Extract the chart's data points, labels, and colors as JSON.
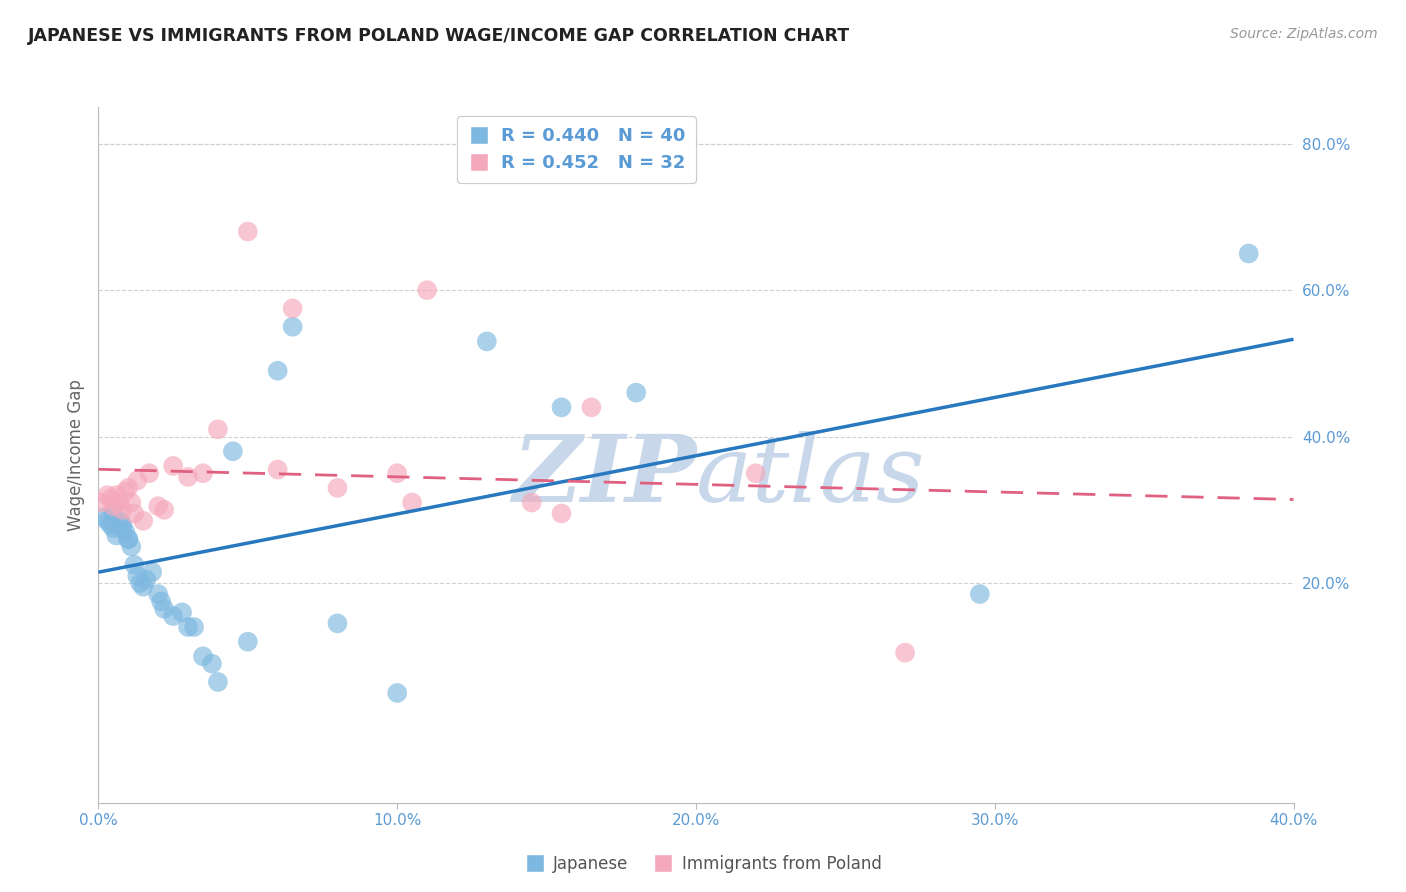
{
  "title": "JAPANESE VS IMMIGRANTS FROM POLAND WAGE/INCOME GAP CORRELATION CHART",
  "source": "Source: ZipAtlas.com",
  "ylabel": "Wage/Income Gap",
  "xlim": [
    0.0,
    0.4
  ],
  "ylim": [
    -0.1,
    0.85
  ],
  "yticks_right": [
    0.2,
    0.4,
    0.6,
    0.8
  ],
  "xticks": [
    0.0,
    0.1,
    0.2,
    0.3,
    0.4
  ],
  "blue_R": 0.44,
  "blue_N": 40,
  "pink_R": 0.452,
  "pink_N": 32,
  "blue_label": "Japanese",
  "pink_label": "Immigrants from Poland",
  "blue_color": "#7db8e0",
  "pink_color": "#f4a8bb",
  "blue_line_color": "#2878c0",
  "pink_line_color": "#e06080",
  "watermark_color": "#c8d8ea",
  "blue_x": [
    0.002,
    0.003,
    0.004,
    0.005,
    0.005,
    0.006,
    0.007,
    0.008,
    0.008,
    0.009,
    0.01,
    0.01,
    0.011,
    0.012,
    0.013,
    0.014,
    0.015,
    0.016,
    0.018,
    0.02,
    0.021,
    0.022,
    0.025,
    0.028,
    0.03,
    0.032,
    0.035,
    0.038,
    0.04,
    0.045,
    0.05,
    0.06,
    0.065,
    0.08,
    0.1,
    0.13,
    0.155,
    0.18,
    0.295,
    0.385
  ],
  "blue_y": [
    0.29,
    0.285,
    0.28,
    0.295,
    0.275,
    0.265,
    0.285,
    0.275,
    0.28,
    0.27,
    0.26,
    0.26,
    0.25,
    0.225,
    0.21,
    0.2,
    0.195,
    0.205,
    0.215,
    0.185,
    0.175,
    0.165,
    0.155,
    0.16,
    0.14,
    0.14,
    0.1,
    0.09,
    0.065,
    0.38,
    0.12,
    0.49,
    0.55,
    0.145,
    0.05,
    0.53,
    0.44,
    0.46,
    0.185,
    0.65
  ],
  "pink_x": [
    0.001,
    0.003,
    0.004,
    0.005,
    0.006,
    0.007,
    0.008,
    0.009,
    0.01,
    0.011,
    0.012,
    0.013,
    0.015,
    0.017,
    0.02,
    0.022,
    0.025,
    0.03,
    0.035,
    0.04,
    0.05,
    0.06,
    0.065,
    0.08,
    0.1,
    0.105,
    0.11,
    0.145,
    0.155,
    0.165,
    0.22,
    0.27
  ],
  "pink_y": [
    0.31,
    0.32,
    0.315,
    0.305,
    0.32,
    0.31,
    0.3,
    0.325,
    0.33,
    0.31,
    0.295,
    0.34,
    0.285,
    0.35,
    0.305,
    0.3,
    0.36,
    0.345,
    0.35,
    0.41,
    0.68,
    0.355,
    0.575,
    0.33,
    0.35,
    0.31,
    0.6,
    0.31,
    0.295,
    0.44,
    0.35,
    0.105
  ],
  "background_color": "#ffffff",
  "grid_color": "#d0d0d0"
}
